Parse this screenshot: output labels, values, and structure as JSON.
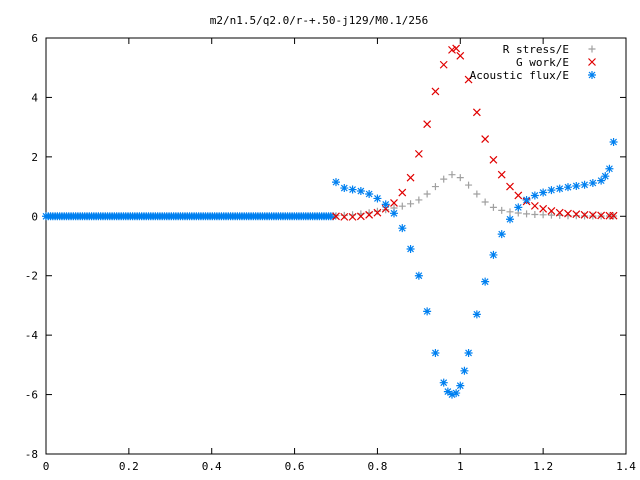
{
  "chart_data": {
    "type": "scatter",
    "title": "m2/n1.5/q2.0/r-+.50-j129/M0.1/256",
    "xlabel": "",
    "ylabel": "",
    "xlim": [
      0,
      1.4
    ],
    "ylim": [
      -8,
      6
    ],
    "x_ticks": [
      "0",
      "0.2",
      "0.4",
      "0.6",
      "0.8",
      "1",
      "1.2",
      "1.4"
    ],
    "y_ticks": [
      "-8",
      "-6",
      "-4",
      "-2",
      "0",
      "2",
      "4",
      "6"
    ],
    "grid": false,
    "legend_position": "top-right",
    "series": [
      {
        "name": "R stress/E",
        "marker": "plus",
        "color": "#a0a0a0",
        "x": [
          0.7,
          0.72,
          0.74,
          0.76,
          0.78,
          0.8,
          0.82,
          0.84,
          0.86,
          0.88,
          0.9,
          0.92,
          0.94,
          0.96,
          0.98,
          1.0,
          1.02,
          1.04,
          1.06,
          1.08,
          1.1,
          1.12,
          1.14,
          1.16,
          1.18,
          1.2,
          1.22,
          1.24,
          1.26,
          1.28,
          1.3,
          1.32,
          1.34,
          1.36,
          1.37
        ],
        "y": [
          0.02,
          0.03,
          0.05,
          0.08,
          0.12,
          0.17,
          0.22,
          0.28,
          0.34,
          0.42,
          0.55,
          0.75,
          1.0,
          1.25,
          1.4,
          1.3,
          1.05,
          0.75,
          0.48,
          0.3,
          0.2,
          0.15,
          0.11,
          0.08,
          0.06,
          0.05,
          0.04,
          0.03,
          0.02,
          0.02,
          0.01,
          0.01,
          0.01,
          0.01,
          0.01
        ]
      },
      {
        "name": "G work/E",
        "marker": "cross",
        "color": "#e00000",
        "x": [
          0.7,
          0.72,
          0.74,
          0.76,
          0.78,
          0.8,
          0.82,
          0.84,
          0.86,
          0.88,
          0.9,
          0.92,
          0.94,
          0.96,
          0.98,
          0.99,
          1.0,
          1.02,
          1.04,
          1.06,
          1.08,
          1.1,
          1.12,
          1.14,
          1.16,
          1.18,
          1.2,
          1.22,
          1.24,
          1.26,
          1.28,
          1.3,
          1.32,
          1.34,
          1.36,
          1.37
        ],
        "y": [
          0.0,
          -0.02,
          -0.02,
          0.0,
          0.05,
          0.12,
          0.25,
          0.45,
          0.8,
          1.3,
          2.1,
          3.1,
          4.2,
          5.1,
          5.6,
          5.65,
          5.4,
          4.6,
          3.5,
          2.6,
          1.9,
          1.4,
          1.0,
          0.7,
          0.5,
          0.35,
          0.25,
          0.18,
          0.12,
          0.09,
          0.07,
          0.05,
          0.04,
          0.03,
          0.02,
          0.02
        ]
      },
      {
        "name": "Acoustic flux/E",
        "marker": "star",
        "color": "#0080f0",
        "x": [
          0.7,
          0.72,
          0.74,
          0.76,
          0.78,
          0.8,
          0.82,
          0.84,
          0.86,
          0.88,
          0.9,
          0.92,
          0.94,
          0.96,
          0.97,
          0.98,
          0.99,
          1.0,
          1.01,
          1.02,
          1.04,
          1.06,
          1.08,
          1.1,
          1.12,
          1.14,
          1.16,
          1.18,
          1.2,
          1.22,
          1.24,
          1.26,
          1.28,
          1.3,
          1.32,
          1.34,
          1.35,
          1.36,
          1.37
        ],
        "y": [
          1.15,
          0.95,
          0.9,
          0.85,
          0.75,
          0.6,
          0.4,
          0.1,
          -0.4,
          -1.1,
          -2.0,
          -3.2,
          -4.6,
          -5.6,
          -5.9,
          -6.0,
          -5.95,
          -5.7,
          -5.2,
          -4.6,
          -3.3,
          -2.2,
          -1.3,
          -0.6,
          -0.1,
          0.3,
          0.55,
          0.7,
          0.8,
          0.88,
          0.93,
          0.98,
          1.02,
          1.06,
          1.12,
          1.2,
          1.35,
          1.6,
          2.5
        ]
      }
    ]
  }
}
